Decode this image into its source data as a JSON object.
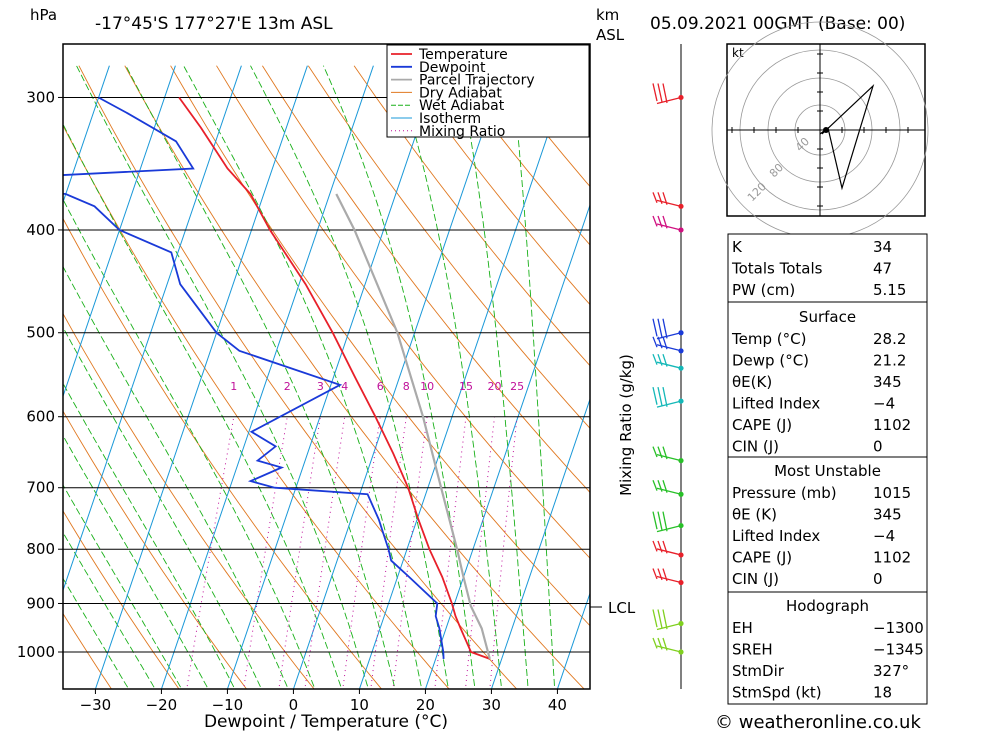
{
  "header": {
    "hpa_unit": "hPa",
    "location": "-17°45'S 177°27'E 13m ASL",
    "km_unit": "km",
    "asl_unit": "ASL",
    "datetime": "05.09.2021 00GMT (Base: 00)"
  },
  "footer": {
    "copyright": "© weatheronline.co.uk"
  },
  "colors": {
    "temperature": "#e8202a",
    "dewpoint": "#1a3ad8",
    "parcel": "#aaaaaa",
    "dry_adiabat": "#e07820",
    "wet_adiabat": "#19b019",
    "isotherm": "#1a98d8",
    "mixing_ratio": "#c0109a"
  },
  "chart_data": {
    "type": "line",
    "title": "",
    "xlabel": "Dewpoint / Temperature (°C)",
    "ylabel": "",
    "x_ticks": [
      "−30",
      "−20",
      "−10",
      "0",
      "10",
      "20",
      "30",
      "40"
    ],
    "x_tick_values": [
      -30,
      -20,
      -10,
      0,
      10,
      20,
      30,
      40
    ],
    "pressure_levels": [
      300,
      400,
      500,
      600,
      700,
      800,
      900,
      1000
    ],
    "pressure_labels": [
      "300",
      "400",
      "500",
      "600",
      "700",
      "800",
      "900",
      "1000"
    ],
    "legend": [
      "Temperature",
      "Dewpoint",
      "Parcel Trajectory",
      "Dry Adiabat",
      "Wet Adiabat",
      "Isotherm",
      "Mixing Ratio"
    ],
    "mixing_ratio_labels": [
      "1",
      "2",
      "3",
      "4",
      "6",
      "8",
      "10",
      "15",
      "20",
      "25"
    ],
    "mixing_ratio_axis_label": "Mixing Ratio (g/kg)",
    "lcl_label": "LCL",
    "lcl_pressure": 905,
    "series": [
      {
        "name": "Temperature",
        "pressure": [
          1015,
          1000,
          950,
          925,
          900,
          850,
          800,
          750,
          700,
          650,
          600,
          550,
          500,
          450,
          400,
          370,
          350,
          320,
          300
        ],
        "temp_c": [
          28.2,
          25,
          22.2,
          20.8,
          19.6,
          16.8,
          13.4,
          10.2,
          7.0,
          3.0,
          -1.6,
          -6.8,
          -12.4,
          -19.0,
          -27.2,
          -32,
          -36.8,
          -43,
          -47.8
        ]
      },
      {
        "name": "Dewpoint",
        "pressure": [
          1015,
          1000,
          950,
          925,
          900,
          850,
          820,
          800,
          750,
          710,
          700,
          690,
          670,
          660,
          640,
          620,
          560,
          520,
          500,
          450,
          420,
          400,
          380,
          370,
          360,
          350,
          330,
          310,
          300
        ],
        "temp_c": [
          21.2,
          20.8,
          19.0,
          17.8,
          17.4,
          11.8,
          8.2,
          7.2,
          4.2,
          1.2,
          -13.2,
          -17.2,
          -13.2,
          -17.2,
          -15.2,
          -19.6,
          -8.6,
          -25.6,
          -30.0,
          -38.0,
          -41.0,
          -50.0,
          -55.0,
          -60.0,
          -80.0,
          -42.0,
          -46.0,
          -55.0,
          -60.0
        ]
      },
      {
        "name": "Parcel Trajectory",
        "pressure": [
          1015,
          950,
          905,
          850,
          800,
          700,
          600,
          500,
          400,
          370
        ],
        "temp_c": [
          28.2,
          25.4,
          22.6,
          20.0,
          17.6,
          12.0,
          5.6,
          -2.6,
          -14.4,
          -19.0
        ]
      }
    ],
    "wind_barbs_right": [
      300,
      380,
      400,
      500,
      520,
      540,
      580,
      660,
      710,
      760,
      810,
      860,
      940,
      1000
    ],
    "hodograph": {
      "unit_label": "kt",
      "ring_labels": [
        "40",
        "80",
        "120"
      ]
    },
    "indices": {
      "K": "34",
      "Totals Totals": "47",
      "PW (cm)": "5.15"
    }
  },
  "table": {
    "general": [
      {
        "label": "K",
        "value": "34"
      },
      {
        "label": "Totals Totals",
        "value": "47"
      },
      {
        "label": "PW (cm)",
        "value": "5.15"
      }
    ],
    "surface_title": "Surface",
    "surface": [
      {
        "label": "Temp (°C)",
        "value": "28.2"
      },
      {
        "label": "Dewp (°C)",
        "value": "21.2"
      },
      {
        "label": "θE(K)",
        "value": "345"
      },
      {
        "label": "Lifted Index",
        "value": "−4"
      },
      {
        "label": "CAPE (J)",
        "value": "1102"
      },
      {
        "label": "CIN (J)",
        "value": "0"
      }
    ],
    "mu_title": "Most Unstable",
    "mu": [
      {
        "label": "Pressure (mb)",
        "value": "1015"
      },
      {
        "label": "θE (K)",
        "value": "345"
      },
      {
        "label": "Lifted Index",
        "value": "−4"
      },
      {
        "label": "CAPE (J)",
        "value": "1102"
      },
      {
        "label": "CIN (J)",
        "value": "0"
      }
    ],
    "hodo_title": "Hodograph",
    "hodo": [
      {
        "label": "EH",
        "value": "−1300"
      },
      {
        "label": "SREH",
        "value": "−1345"
      },
      {
        "label": "StmDir",
        "value": "327°"
      },
      {
        "label": "StmSpd (kt)",
        "value": "18"
      }
    ]
  }
}
